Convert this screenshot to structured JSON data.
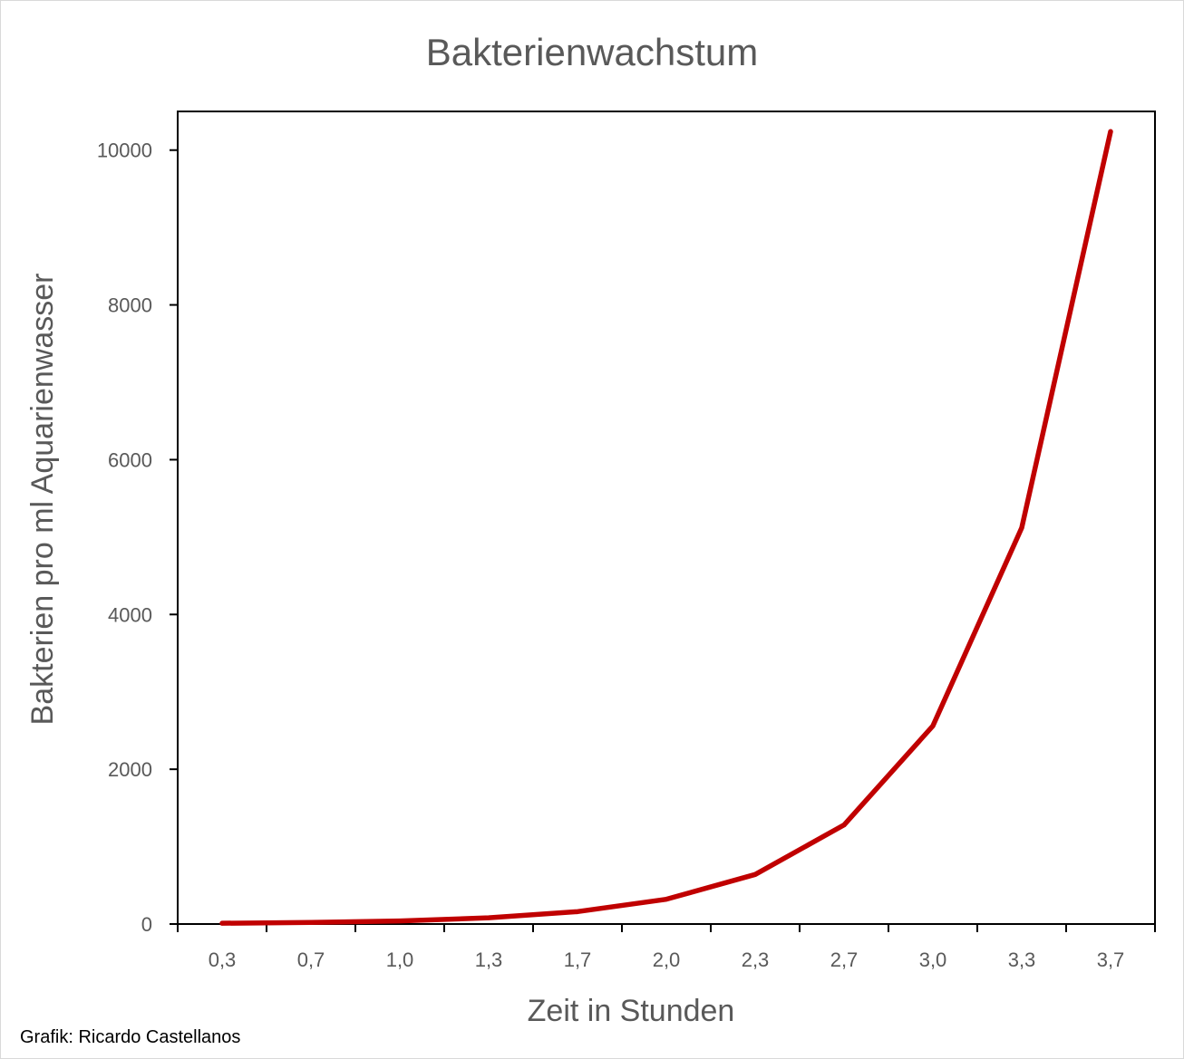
{
  "chart_data": {
    "type": "line",
    "title": "Bakterienwachstum",
    "xlabel": "Zeit in Stunden",
    "ylabel": "Bakterien pro ml Aquarienwasser",
    "categories": [
      "0,3",
      "0,7",
      "1,0",
      "1,3",
      "1,7",
      "2,0",
      "2,3",
      "2,7",
      "3,0",
      "3,3",
      "3,7"
    ],
    "yticks": [
      "0",
      "2000",
      "4000",
      "6000",
      "8000",
      "10000"
    ],
    "ylim": [
      0,
      10500
    ],
    "series": [
      {
        "values": [
          10,
          20,
          40,
          80,
          160,
          320,
          640,
          1280,
          2560,
          5120,
          10240
        ],
        "color": "#c00000"
      }
    ],
    "grid": false,
    "legend": "none"
  },
  "credit": "Grafik: Ricardo Castellanos"
}
